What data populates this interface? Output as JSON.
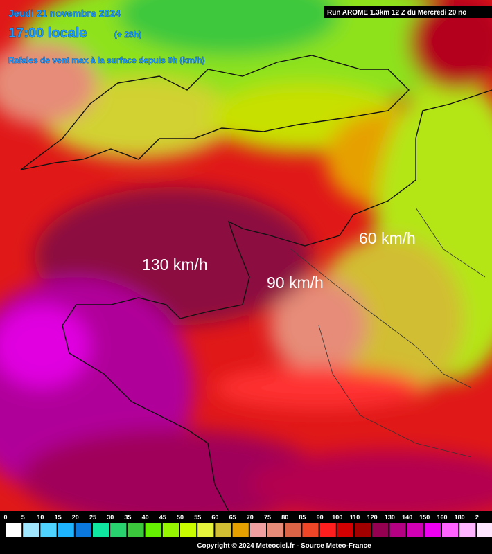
{
  "header": {
    "date": "Jeudi 21 novembre 2024",
    "time": "17:00 locale",
    "lead": "(+ 28h)",
    "subtitle": "Rafales de vent max à la surface depuis 0h (km/h)",
    "run": "Run AROME 1.3km 12 Z du Mercredi 20 no"
  },
  "annotations": [
    "130 km/h",
    "90 km/h",
    "60 km/h"
  ],
  "legend": [
    {
      "label": "0",
      "color": "#ffffff"
    },
    {
      "label": "5",
      "color": "#a0e6ff"
    },
    {
      "label": "10",
      "color": "#50d2ff"
    },
    {
      "label": "15",
      "color": "#1eb4ff"
    },
    {
      "label": "20",
      "color": "#0a78dc"
    },
    {
      "label": "25",
      "color": "#0fe6a0"
    },
    {
      "label": "30",
      "color": "#28d26e"
    },
    {
      "label": "35",
      "color": "#3cc83c"
    },
    {
      "label": "40",
      "color": "#64f000"
    },
    {
      "label": "45",
      "color": "#96f500"
    },
    {
      "label": "50",
      "color": "#c8fa00"
    },
    {
      "label": "55",
      "color": "#e6f53c"
    },
    {
      "label": "60",
      "color": "#d2be32"
    },
    {
      "label": "65",
      "color": "#e6a000"
    },
    {
      "label": "70",
      "color": "#f0a0a0"
    },
    {
      "label": "75",
      "color": "#e68c78"
    },
    {
      "label": "80",
      "color": "#dc6446"
    },
    {
      "label": "85",
      "color": "#f04628"
    },
    {
      "label": "90",
      "color": "#ff1e1e"
    },
    {
      "label": "100",
      "color": "#d20000"
    },
    {
      "label": "110",
      "color": "#a00000"
    },
    {
      "label": "120",
      "color": "#960050"
    },
    {
      "label": "130",
      "color": "#b40082"
    },
    {
      "label": "140",
      "color": "#d200b4"
    },
    {
      "label": "150",
      "color": "#f000f0"
    },
    {
      "label": "160",
      "color": "#ff64ff"
    },
    {
      "label": "180",
      "color": "#ffb4ff"
    },
    {
      "label": "2",
      "color": "#ffe6ff"
    }
  ],
  "footer": "Copyright © 2024 Meteociel.fr - Source Meteo-France"
}
